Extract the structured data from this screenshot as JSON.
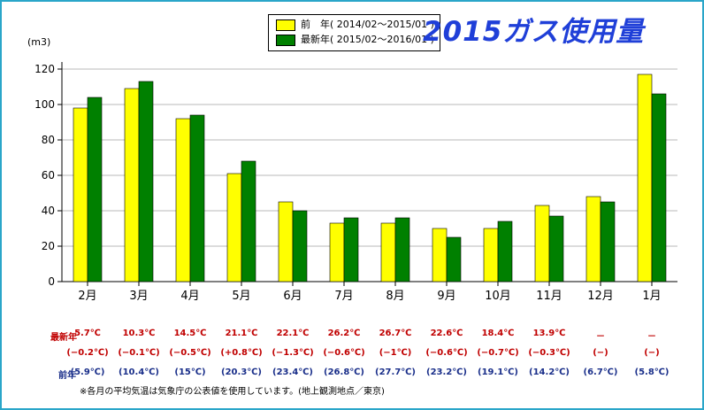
{
  "title": "2015ガス使用量",
  "legend": [
    {
      "name": "前　年( 2014/02～2015/01 )",
      "color": "#ffff00"
    },
    {
      "name": "最新年( 2015/02～2016/01 )",
      "color": "#008000"
    }
  ],
  "chart_data": {
    "type": "bar",
    "ylabel": "(m3)",
    "ylim": [
      0,
      120
    ],
    "yticks": [
      0,
      20,
      40,
      60,
      80,
      100,
      120
    ],
    "grid": true,
    "legend_position": "top-center",
    "categories": [
      "2月",
      "3月",
      "4月",
      "5月",
      "6月",
      "7月",
      "8月",
      "9月",
      "10月",
      "11月",
      "12月",
      "1月"
    ],
    "series": [
      {
        "name": "前　年( 2014/02～2015/01 )",
        "color": "#ffff00",
        "values": [
          98,
          109,
          92,
          61,
          45,
          33,
          33,
          30,
          30,
          43,
          48,
          117
        ]
      },
      {
        "name": "最新年( 2015/02～2016/01 )",
        "color": "#008000",
        "values": [
          104,
          113,
          94,
          68,
          40,
          36,
          36,
          25,
          34,
          37,
          45,
          106
        ]
      }
    ]
  },
  "temperature_table": {
    "latest_label": "最新年",
    "previous_label": "前年",
    "latest_temps": [
      "5.7℃",
      "10.3℃",
      "14.5℃",
      "21.1℃",
      "22.1℃",
      "26.2℃",
      "26.7℃",
      "22.6℃",
      "18.4℃",
      "13.9℃",
      "－",
      "－"
    ],
    "differences": [
      "(−0.2℃)",
      "(−0.1℃)",
      "(−0.5℃)",
      "(+0.8℃)",
      "(−1.3℃)",
      "(−0.6℃)",
      "(−1℃)",
      "(−0.6℃)",
      "(−0.7℃)",
      "(−0.3℃)",
      "(−)",
      "(−)"
    ],
    "previous_temps": [
      "(5.9℃)",
      "(10.4℃)",
      "(15℃)",
      "(20.3℃)",
      "(23.4℃)",
      "(26.8℃)",
      "(27.7℃)",
      "(23.2℃)",
      "(19.1℃)",
      "(14.2℃)",
      "(6.7℃)",
      "(5.8℃)"
    ]
  },
  "footnote": "※各月の平均気温は気象庁の公表値を使用しています。(地上観測地点／東京)"
}
